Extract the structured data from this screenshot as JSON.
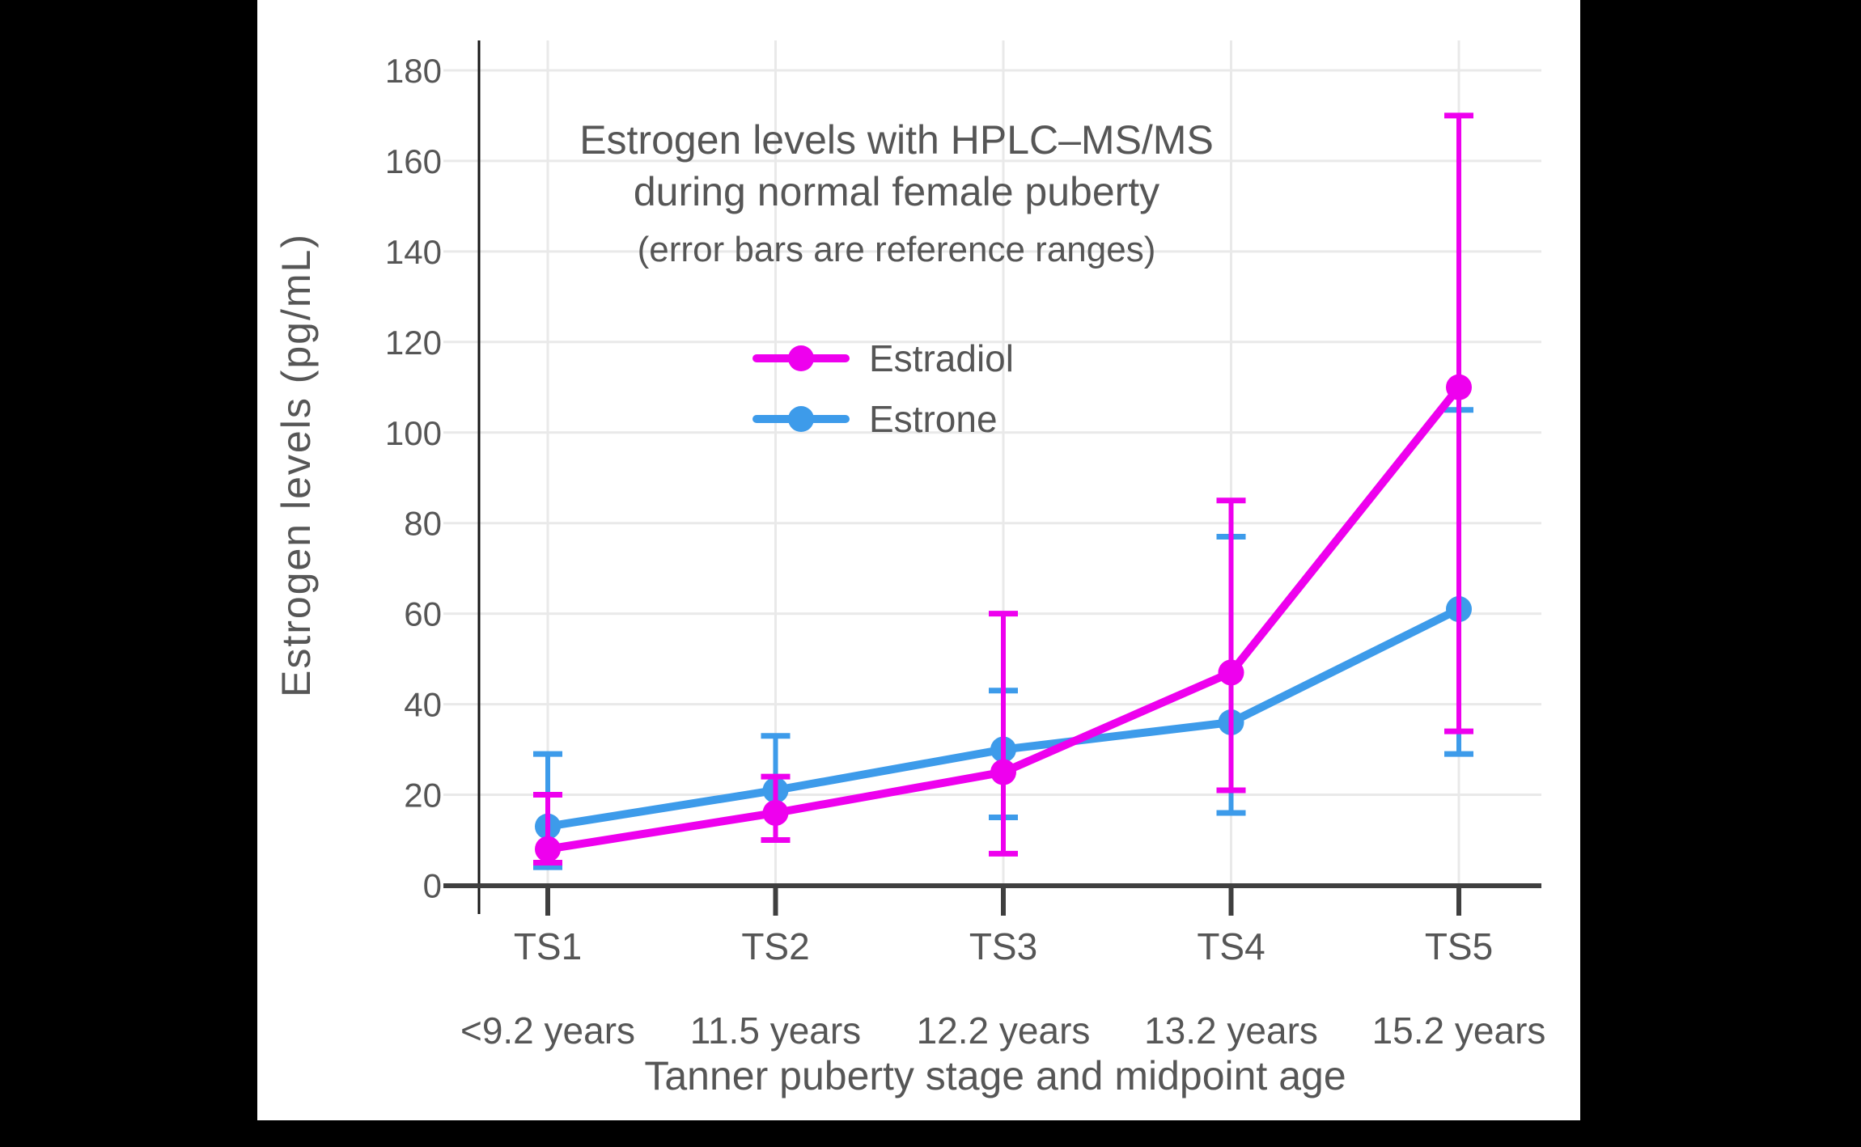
{
  "frame": {
    "background": "#000000",
    "panel_background": "#ffffff"
  },
  "title": {
    "line1": "Estrogen levels with HPLC–MS/MS",
    "line2": "during normal female puberty",
    "subtitle": "(error bars are reference ranges)"
  },
  "axes": {
    "ylabel": "Estrogen levels (pg/mL)",
    "xlabel": "Tanner puberty stage and midpoint age"
  },
  "colors": {
    "estradiol": "#EE00EE",
    "estrone": "#3D9BEA",
    "text": "#565656",
    "grid": "#E9E9E9",
    "x_spine": "#3F3F3F",
    "y_spine": "#161616"
  },
  "legend": {
    "entries": [
      {
        "label": "Estradiol",
        "color": "#EE00EE"
      },
      {
        "label": "Estrone",
        "color": "#3D9BEA"
      }
    ]
  },
  "chart_data": {
    "type": "line",
    "title": "Estrogen levels with HPLC–MS/MS during normal female puberty",
    "subtitle": "(error bars are reference ranges)",
    "xlabel": "Tanner puberty stage and midpoint age",
    "ylabel": "Estrogen levels (pg/mL)",
    "categories": [
      "TS1",
      "TS2",
      "TS3",
      "TS4",
      "TS5"
    ],
    "category_sublabels": [
      "<9.2 years",
      "11.5 years",
      "12.2 years",
      "13.2 years",
      "15.2 years"
    ],
    "yticks": [
      0,
      20,
      40,
      60,
      80,
      100,
      120,
      140,
      160,
      180
    ],
    "ylim": [
      0,
      187
    ],
    "grid": true,
    "legend_position": "inside-upper-center",
    "error_bars": "reference ranges",
    "series": [
      {
        "name": "Estradiol",
        "color": "#EE00EE",
        "values": [
          8,
          16,
          25,
          47,
          110
        ],
        "err_low": [
          5,
          10,
          7,
          21,
          34
        ],
        "err_high": [
          20,
          24,
          60,
          85,
          170
        ]
      },
      {
        "name": "Estrone",
        "color": "#3D9BEA",
        "values": [
          13,
          21,
          30,
          36,
          61
        ],
        "err_low": [
          4,
          10,
          15,
          16,
          29
        ],
        "err_high": [
          29,
          33,
          43,
          77,
          105
        ]
      }
    ]
  }
}
